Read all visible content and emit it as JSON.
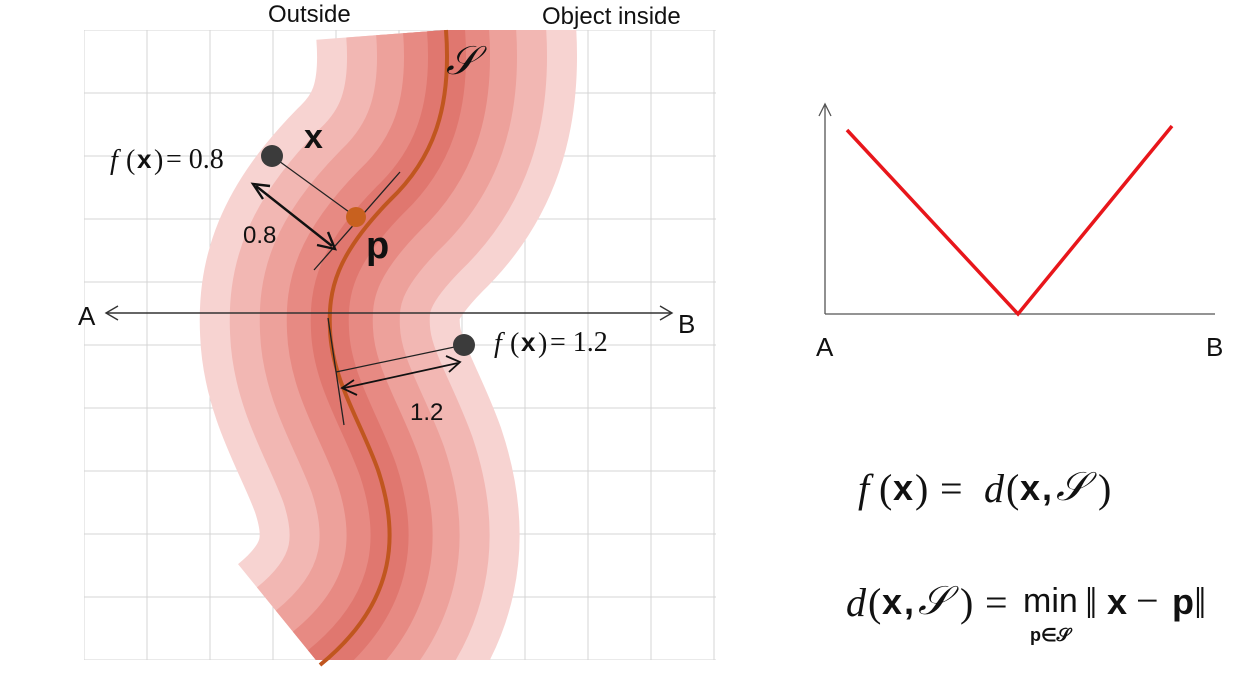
{
  "header": {
    "outside_label": "Outside",
    "inside_label": "Object inside"
  },
  "curve": {
    "label": "𝒮",
    "curve_color": "#c0561f",
    "band_colors": [
      "#f7d3d1",
      "#f2b7b3",
      "#eda19b",
      "#e78a83",
      "#e0776f"
    ]
  },
  "points": {
    "x_point": {
      "label": "x",
      "formula_f": "f",
      "formula_x": "x",
      "formula_eq": "= 0.8",
      "distance_label": "0.8"
    },
    "p_point": {
      "label": "p"
    },
    "second_point": {
      "formula_f": "f",
      "formula_x": "x",
      "formula_eq": "= 1.2",
      "distance_label": "1.2"
    }
  },
  "axis_line": {
    "left_label": "A",
    "right_label": "B"
  },
  "graph": {
    "left_label": "A",
    "right_label": "B",
    "line_color": "#e8161b"
  },
  "equations": {
    "eq1": {
      "f": "f",
      "open": "(",
      "x": "x",
      "close": ")",
      "equals": "=",
      "d": "d",
      "args_open": "(",
      "x2": "x",
      "comma": ",",
      "s": "𝒮",
      "args_close": ")"
    },
    "eq2": {
      "d": "d",
      "open": "(",
      "x": "x",
      "comma": ",",
      "s": "𝒮",
      "close": ")",
      "equals": "=",
      "min": "min",
      "sub": "p∈𝒮",
      "norm_open": "‖",
      "x2": "x",
      "minus": "−",
      "p": "p",
      "norm_close": "‖"
    }
  }
}
